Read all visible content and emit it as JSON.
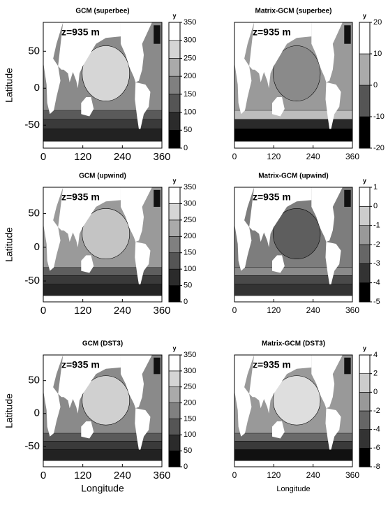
{
  "xlabel": "Longitude",
  "ylabel": "Latitude",
  "xlim": [
    0,
    360
  ],
  "ylim": [
    -81,
    89
  ],
  "panels": [
    {
      "title": "GCM (superbee)",
      "annotation": "z=935 m",
      "colorbar_label": "y",
      "colorbar_ticks": [
        0,
        50,
        100,
        150,
        200,
        250,
        300,
        350
      ],
      "xticks": [
        0,
        120,
        240,
        360
      ],
      "yticks": [
        -50,
        0,
        50
      ]
    },
    {
      "title": "Matrix-GCM (superbee)",
      "annotation": "z=935 m",
      "colorbar_label": "y",
      "colorbar_ticks": [
        -20,
        -10,
        0,
        10,
        20
      ],
      "xticks": [
        0,
        120,
        240,
        360
      ]
    },
    {
      "title": "GCM (upwind)",
      "annotation": "z=935 m",
      "colorbar_label": "y",
      "colorbar_ticks": [
        0,
        50,
        100,
        150,
        200,
        250,
        300,
        350
      ],
      "xticks": [
        0,
        120,
        240,
        360
      ],
      "yticks": [
        -50,
        0,
        50
      ]
    },
    {
      "title": "Matrix-GCM (upwind)",
      "annotation": "z=935 m",
      "colorbar_label": "y",
      "colorbar_ticks": [
        -5,
        -4,
        -3,
        -2,
        -1,
        0,
        1
      ],
      "xticks": [
        0,
        120,
        240,
        360
      ]
    },
    {
      "title": "GCM (DST3)",
      "annotation": "z=935 m",
      "colorbar_label": "y",
      "colorbar_ticks": [
        0,
        50,
        100,
        150,
        200,
        250,
        300,
        350
      ],
      "xticks": [
        0,
        120,
        240,
        360
      ],
      "yticks": [
        -50,
        0,
        50
      ]
    },
    {
      "title": "Matrix-GCM (DST3)",
      "annotation": "z=935 m",
      "colorbar_label": "y",
      "colorbar_ticks": [
        -8,
        -6,
        -4,
        -2,
        0,
        2,
        4
      ],
      "xticks": [
        0,
        120,
        240,
        360
      ]
    }
  ]
}
